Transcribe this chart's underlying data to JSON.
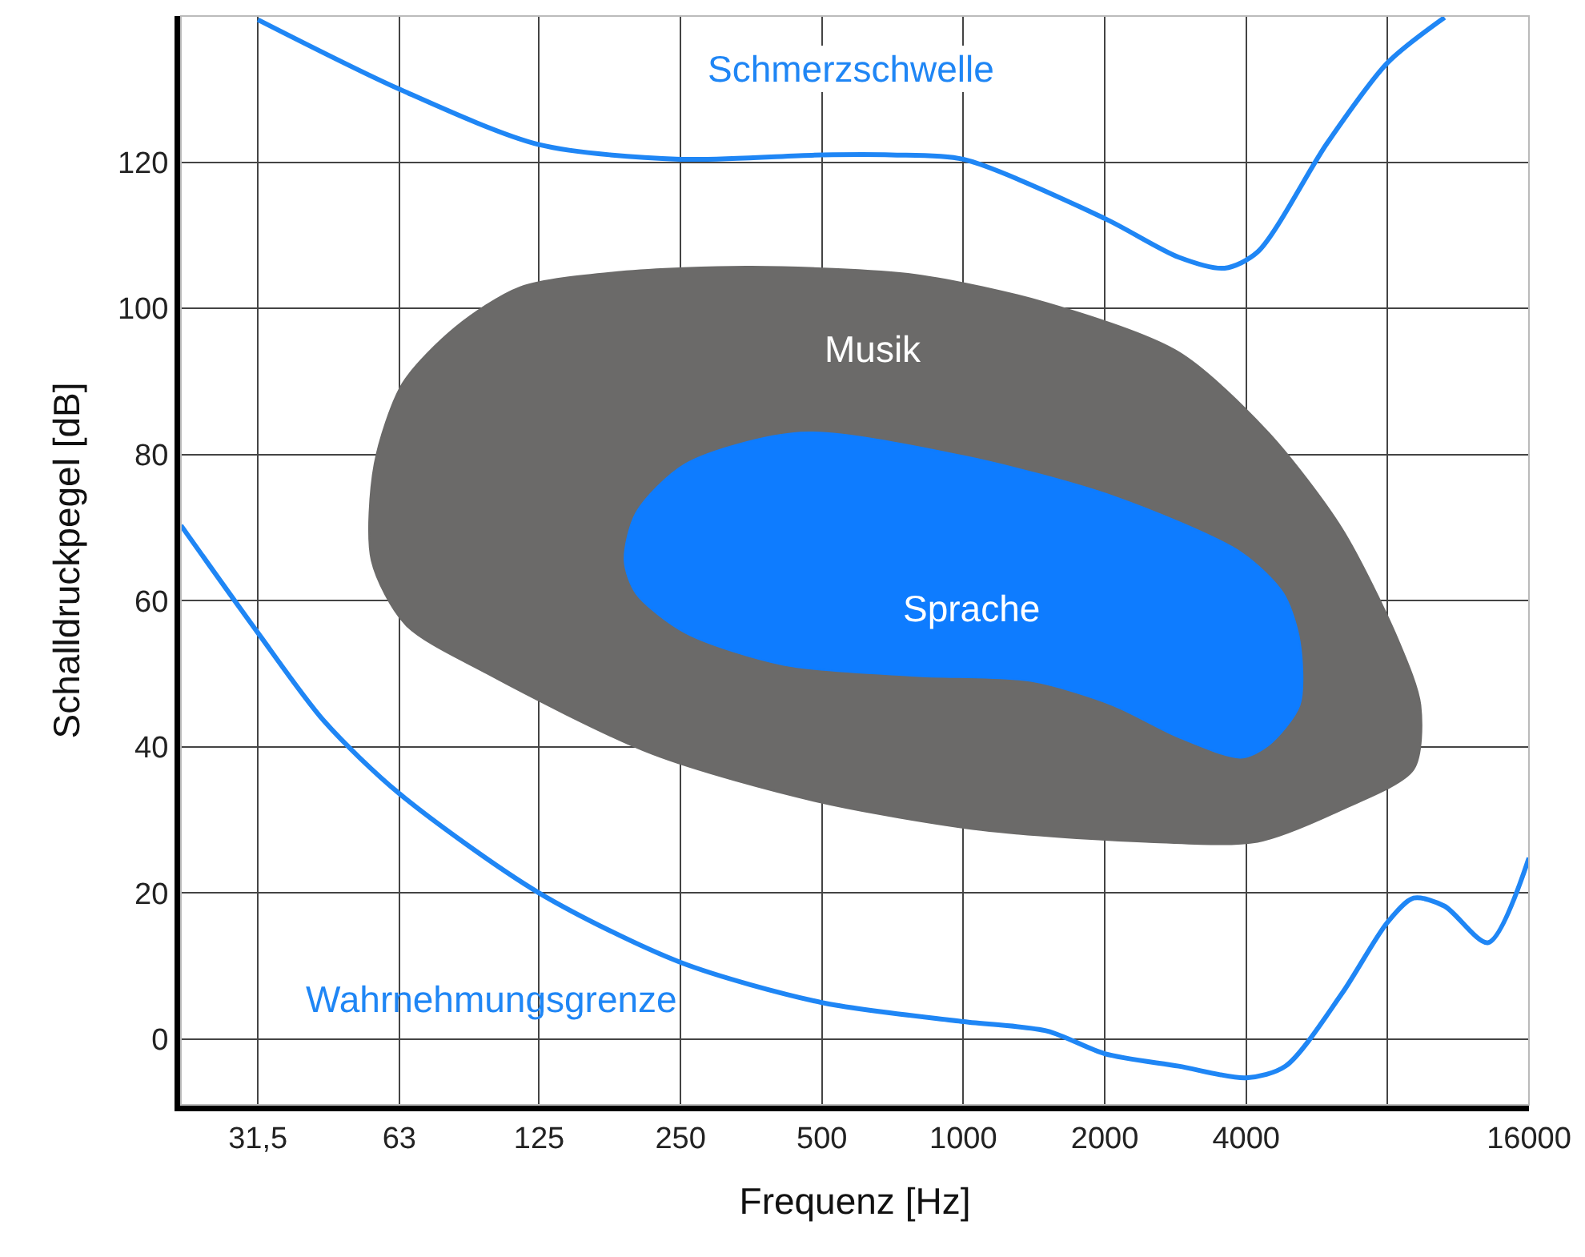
{
  "chart_data": {
    "type": "line",
    "xlabel": "Frequenz [Hz]",
    "ylabel": "Schalldruckpegel [dB]",
    "log": "x",
    "xlim": [
      21.6,
      16000
    ],
    "ylim": [
      -9,
      140
    ],
    "xticks": [
      {
        "value": 31.5,
        "label": "31,5"
      },
      63,
      125,
      250,
      500,
      1000,
      2000,
      4000,
      {
        "value": 8000,
        "label": null
      },
      16000
    ],
    "yticks": [
      0,
      20,
      40,
      60,
      80,
      100,
      120
    ],
    "grid": true,
    "marker": "none",
    "line_style": "solid",
    "series": [
      {
        "type": "area",
        "name": "Musik",
        "color": "#6b6a69",
        "x": [
          64,
          55.8,
          55,
          65,
          97,
          218,
          488,
          1092,
          2447,
          4230,
          6390,
          9090,
          9400,
          8440,
          6390,
          4460,
          2873,
          1510,
          791,
          354,
          186,
          114,
          83,
          64
        ],
        "values": [
          89.7,
          78.7,
          65.5,
          56.7,
          50,
          39,
          32.5,
          28.6,
          27,
          27,
          31.4,
          36.9,
          45.7,
          54.5,
          69.9,
          83,
          94,
          100.7,
          104.6,
          105.7,
          105,
          102.9,
          97.4,
          89.7
        ]
      },
      {
        "type": "area",
        "name": "Sprache",
        "color": "#0e7cff",
        "x": [
          190,
          201,
          256,
          450,
          1000,
          2080,
          3900,
          4800,
          5200,
          5200,
          4460,
          3900,
          2873,
          2080,
          1393,
          791,
          415,
          256,
          201,
          190
        ],
        "values": [
          65.5,
          72,
          78.7,
          83,
          79.8,
          74.3,
          66.6,
          61,
          54.5,
          45.7,
          40.2,
          38.5,
          41.3,
          45.7,
          49,
          49.7,
          51.2,
          55.6,
          61,
          65.5
        ]
      },
      {
        "name": "Schmerzschwelle",
        "color": "#1f86f5",
        "x": [
          31.5,
          63,
          125,
          250,
          500,
          702,
          1000,
          2000,
          2873,
          3600,
          4230,
          5950,
          8000,
          10580
        ],
        "values": [
          139.5,
          130,
          122.4,
          120.4,
          121,
          121,
          120.4,
          112.3,
          107,
          105.5,
          107.7,
          122.6,
          133.6,
          139.8
        ]
      },
      {
        "name": "Wahrnehmungsgrenze",
        "color": "#1f86f5",
        "x": [
          21.6,
          31.5,
          43.6,
          63,
          125,
          250,
          500,
          1000,
          1510,
          2000,
          2873,
          4000,
          4850,
          6390,
          8000,
          9090,
          10580,
          13100,
          16000
        ],
        "values": [
          70.3,
          55.6,
          43.5,
          33.6,
          20,
          10.5,
          5,
          2.4,
          1.1,
          -2,
          -3.7,
          -5.3,
          -3.7,
          6.2,
          16,
          19.3,
          18.2,
          13.2,
          24.8
        ]
      }
    ]
  }
}
